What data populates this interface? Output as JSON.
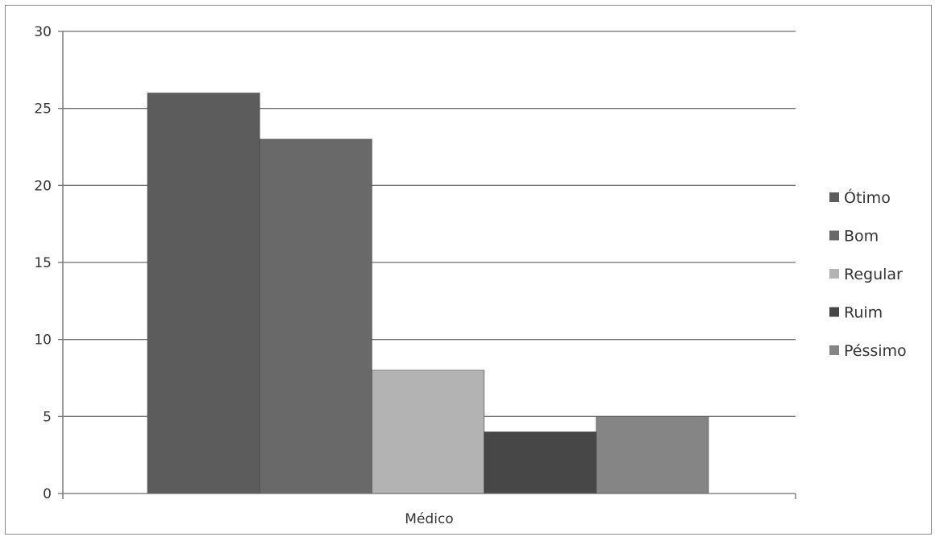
{
  "chart_data": {
    "type": "bar",
    "title": "",
    "xlabel": "",
    "ylabel": "",
    "categories": [
      "Médico"
    ],
    "series": [
      {
        "name": "Ótimo",
        "values": [
          26
        ],
        "color": "#5c5c5c"
      },
      {
        "name": "Bom",
        "values": [
          23
        ],
        "color": "#696969"
      },
      {
        "name": "Regular",
        "values": [
          8
        ],
        "color": "#b3b3b3"
      },
      {
        "name": "Ruim",
        "values": [
          4
        ],
        "color": "#474747"
      },
      {
        "name": "Péssimo",
        "values": [
          5
        ],
        "color": "#858585"
      }
    ],
    "ylim": [
      0,
      30
    ],
    "yticks": [
      "0",
      "5",
      "10",
      "15",
      "20",
      "25",
      "30"
    ],
    "grid": true,
    "legend_position": "right"
  }
}
